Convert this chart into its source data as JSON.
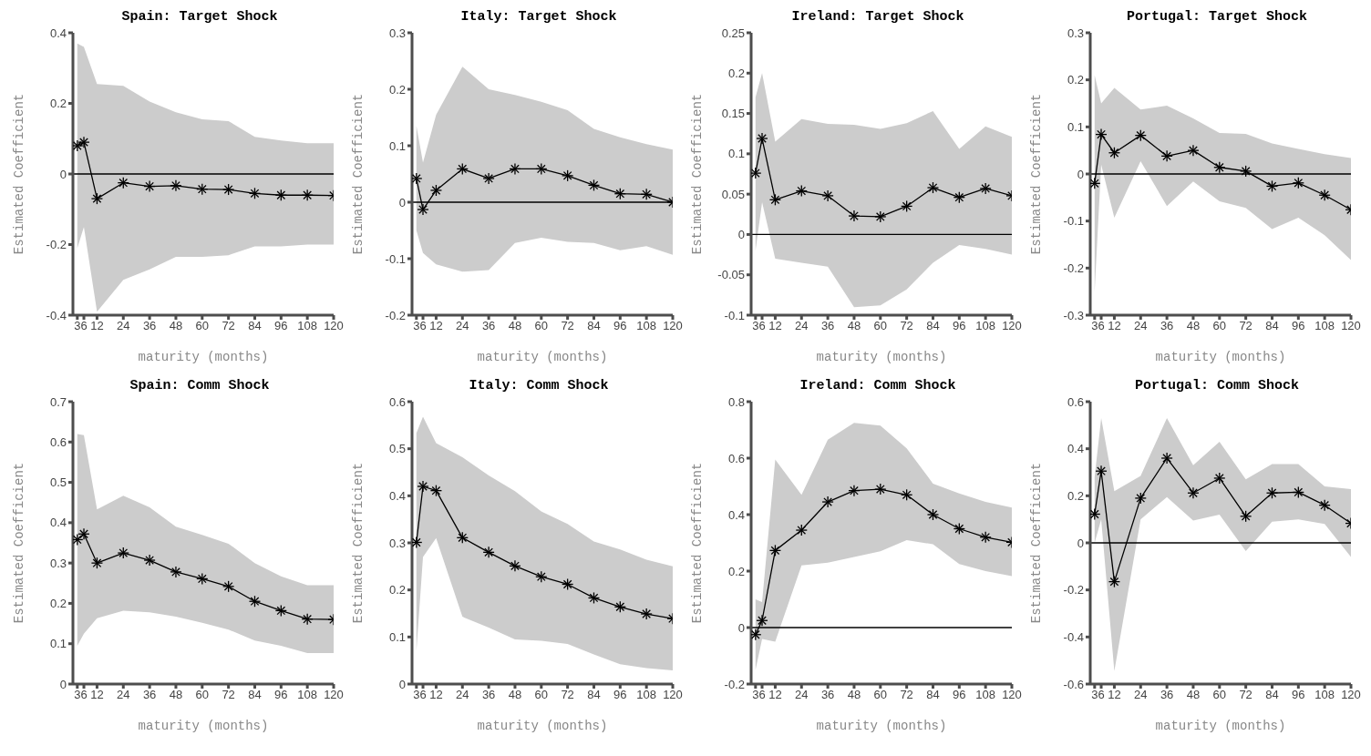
{
  "chart_data": [
    {
      "type": "line",
      "title": "Spain: Target Shock",
      "xlabel": "maturity (months)",
      "ylabel": "Estimated Coefficient",
      "x": [
        3,
        6,
        12,
        24,
        36,
        48,
        60,
        72,
        84,
        96,
        108,
        120
      ],
      "xlim": [
        1,
        120
      ],
      "xticks": [
        3,
        6,
        12,
        24,
        36,
        48,
        60,
        72,
        84,
        96,
        108,
        120
      ],
      "ylim": [
        -0.4,
        0.4
      ],
      "yticks": [
        -0.4,
        -0.2,
        0,
        0.2,
        0.4
      ],
      "marker": "cross",
      "grid": false,
      "ref_lines": [
        {
          "axis": "y",
          "value": 0,
          "color": "#000000"
        }
      ],
      "series": [
        {
          "color": "#000000",
          "values": [
            0.08,
            0.09,
            -0.07,
            -0.025,
            -0.035,
            -0.033,
            -0.043,
            -0.044,
            -0.055,
            -0.06,
            -0.06,
            -0.061
          ],
          "upper": [
            0.37,
            0.36,
            0.255,
            0.25,
            0.205,
            0.175,
            0.155,
            0.15,
            0.105,
            0.095,
            0.087,
            0.087
          ],
          "lower": [
            -0.21,
            -0.15,
            -0.39,
            -0.3,
            -0.27,
            -0.235,
            -0.235,
            -0.23,
            -0.205,
            -0.205,
            -0.2,
            -0.2
          ]
        }
      ]
    },
    {
      "type": "line",
      "title": "Italy: Target Shock",
      "xlabel": "maturity (months)",
      "ylabel": "Estimated Coefficient",
      "x": [
        3,
        6,
        12,
        24,
        36,
        48,
        60,
        72,
        84,
        96,
        108,
        120
      ],
      "xlim": [
        1,
        120
      ],
      "xticks": [
        3,
        6,
        12,
        24,
        36,
        48,
        60,
        72,
        84,
        96,
        108,
        120
      ],
      "ylim": [
        -0.2,
        0.3
      ],
      "yticks": [
        -0.2,
        -0.1,
        0,
        0.1,
        0.2,
        0.3
      ],
      "marker": "cross",
      "grid": false,
      "ref_lines": [
        {
          "axis": "y",
          "value": 0,
          "color": "#000000"
        }
      ],
      "series": [
        {
          "color": "#000000",
          "values": [
            0.042,
            -0.013,
            0.021,
            0.059,
            0.042,
            0.059,
            0.059,
            0.047,
            0.03,
            0.015,
            0.014,
            0
          ],
          "upper": [
            0.135,
            0.07,
            0.155,
            0.24,
            0.2,
            0.19,
            0.178,
            0.163,
            0.13,
            0.115,
            0.103,
            0.093
          ],
          "lower": [
            -0.05,
            -0.09,
            -0.11,
            -0.123,
            -0.12,
            -0.072,
            -0.063,
            -0.07,
            -0.072,
            -0.085,
            -0.078,
            -0.093
          ]
        }
      ]
    },
    {
      "type": "line",
      "title": "Ireland: Target Shock",
      "xlabel": "maturity (months)",
      "ylabel": "Estimated Coefficient",
      "x": [
        3,
        6,
        12,
        24,
        36,
        48,
        60,
        72,
        84,
        96,
        108,
        120
      ],
      "xlim": [
        1,
        120
      ],
      "xticks": [
        3,
        6,
        12,
        24,
        36,
        48,
        60,
        72,
        84,
        96,
        108,
        120
      ],
      "ylim": [
        -0.1,
        0.25
      ],
      "yticks": [
        -0.1,
        -0.05,
        0,
        0.05,
        0.1,
        0.15,
        0.2,
        0.25
      ],
      "marker": "cross",
      "grid": false,
      "ref_lines": [
        {
          "axis": "y",
          "value": 0,
          "color": "#000000"
        }
      ],
      "series": [
        {
          "color": "#000000",
          "values": [
            0.076,
            0.119,
            0.043,
            0.054,
            0.048,
            0.023,
            0.022,
            0.035,
            0.058,
            0.046,
            0.057,
            0.048
          ],
          "upper": [
            0.17,
            0.2,
            0.115,
            0.143,
            0.137,
            0.136,
            0.131,
            0.138,
            0.153,
            0.106,
            0.134,
            0.121
          ],
          "lower": [
            -0.02,
            0.04,
            -0.03,
            -0.035,
            -0.04,
            -0.09,
            -0.088,
            -0.068,
            -0.035,
            -0.013,
            -0.018,
            -0.025
          ]
        }
      ]
    },
    {
      "type": "line",
      "title": "Portugal: Target Shock",
      "xlabel": "maturity (months)",
      "ylabel": "Estimated Coefficient",
      "x": [
        3,
        6,
        12,
        24,
        36,
        48,
        60,
        72,
        84,
        96,
        108,
        120
      ],
      "xlim": [
        1,
        120
      ],
      "xticks": [
        3,
        6,
        12,
        24,
        36,
        48,
        60,
        72,
        84,
        96,
        108,
        120
      ],
      "ylim": [
        -0.3,
        0.3
      ],
      "yticks": [
        -0.3,
        -0.2,
        -0.1,
        0,
        0.1,
        0.2,
        0.3
      ],
      "marker": "cross",
      "grid": false,
      "ref_lines": [
        {
          "axis": "y",
          "value": 0,
          "color": "#000000"
        }
      ],
      "series": [
        {
          "color": "#000000",
          "values": [
            -0.02,
            0.084,
            0.045,
            0.082,
            0.038,
            0.05,
            0.014,
            0.006,
            -0.026,
            -0.019,
            -0.045,
            -0.076
          ],
          "upper": [
            0.21,
            0.15,
            0.183,
            0.137,
            0.145,
            0.118,
            0.087,
            0.085,
            0.065,
            0.053,
            0.042,
            0.034
          ],
          "lower": [
            -0.25,
            0.02,
            -0.093,
            0.027,
            -0.068,
            -0.016,
            -0.058,
            -0.072,
            -0.117,
            -0.093,
            -0.13,
            -0.183
          ]
        }
      ]
    },
    {
      "type": "line",
      "title": "Spain: Comm Shock",
      "xlabel": "maturity (months)",
      "ylabel": "Estimated Coefficient",
      "x": [
        3,
        6,
        12,
        24,
        36,
        48,
        60,
        72,
        84,
        96,
        108,
        120
      ],
      "xlim": [
        1,
        120
      ],
      "xticks": [
        3,
        6,
        12,
        24,
        36,
        48,
        60,
        72,
        84,
        96,
        108,
        120
      ],
      "ylim": [
        0,
        0.7
      ],
      "yticks": [
        0,
        0.1,
        0.2,
        0.3,
        0.4,
        0.5,
        0.6,
        0.7
      ],
      "marker": "cross",
      "grid": false,
      "series": [
        {
          "color": "#000000",
          "values": [
            0.358,
            0.372,
            0.3,
            0.325,
            0.307,
            0.278,
            0.261,
            0.242,
            0.205,
            0.182,
            0.161,
            0.16
          ],
          "upper": [
            0.62,
            0.617,
            0.433,
            0.467,
            0.438,
            0.39,
            0.37,
            0.348,
            0.3,
            0.267,
            0.245,
            0.245
          ],
          "lower": [
            0.095,
            0.125,
            0.163,
            0.182,
            0.178,
            0.167,
            0.152,
            0.135,
            0.108,
            0.095,
            0.077,
            0.077
          ]
        }
      ]
    },
    {
      "type": "line",
      "title": "Italy: Comm Shock",
      "xlabel": "maturity (months)",
      "ylabel": "Estimated Coefficient",
      "x": [
        3,
        6,
        12,
        24,
        36,
        48,
        60,
        72,
        84,
        96,
        108,
        120
      ],
      "xlim": [
        1,
        120
      ],
      "xticks": [
        3,
        6,
        12,
        24,
        36,
        48,
        60,
        72,
        84,
        96,
        108,
        120
      ],
      "ylim": [
        0,
        0.6
      ],
      "yticks": [
        0,
        0.1,
        0.2,
        0.3,
        0.4,
        0.5,
        0.6
      ],
      "marker": "cross",
      "grid": false,
      "series": [
        {
          "color": "#000000",
          "values": [
            0.301,
            0.42,
            0.411,
            0.311,
            0.28,
            0.251,
            0.228,
            0.212,
            0.183,
            0.164,
            0.149,
            0.139
          ],
          "upper": [
            0.533,
            0.568,
            0.512,
            0.482,
            0.443,
            0.41,
            0.367,
            0.34,
            0.303,
            0.286,
            0.264,
            0.25
          ],
          "lower": [
            0.07,
            0.27,
            0.31,
            0.143,
            0.12,
            0.095,
            0.092,
            0.085,
            0.063,
            0.042,
            0.034,
            0.029
          ]
        }
      ]
    },
    {
      "type": "line",
      "title": "Ireland: Comm Shock",
      "xlabel": "maturity (months)",
      "ylabel": "Estimated Coefficient",
      "x": [
        3,
        6,
        12,
        24,
        36,
        48,
        60,
        72,
        84,
        96,
        108,
        120
      ],
      "xlim": [
        1,
        120
      ],
      "xticks": [
        3,
        6,
        12,
        24,
        36,
        48,
        60,
        72,
        84,
        96,
        108,
        120
      ],
      "ylim": [
        -0.2,
        0.8
      ],
      "yticks": [
        -0.2,
        0,
        0.2,
        0.4,
        0.6,
        0.8
      ],
      "marker": "cross",
      "grid": false,
      "ref_lines": [
        {
          "axis": "y",
          "value": 0,
          "color": "#000000"
        }
      ],
      "series": [
        {
          "color": "#000000",
          "values": [
            -0.025,
            0.025,
            0.273,
            0.345,
            0.445,
            0.485,
            0.49,
            0.47,
            0.4,
            0.35,
            0.32,
            0.302
          ],
          "upper": [
            0.1,
            0.09,
            0.595,
            0.47,
            0.665,
            0.725,
            0.715,
            0.635,
            0.51,
            0.475,
            0.445,
            0.425
          ],
          "lower": [
            -0.15,
            -0.04,
            -0.05,
            0.22,
            0.23,
            0.25,
            0.27,
            0.31,
            0.295,
            0.225,
            0.2,
            0.182
          ]
        }
      ]
    },
    {
      "type": "line",
      "title": "Portugal: Comm Shock",
      "xlabel": "maturity (months)",
      "ylabel": "Estimated Coefficient",
      "x": [
        3,
        6,
        12,
        24,
        36,
        48,
        60,
        72,
        84,
        96,
        108,
        120
      ],
      "xlim": [
        1,
        120
      ],
      "xticks": [
        3,
        6,
        12,
        24,
        36,
        48,
        60,
        72,
        84,
        96,
        108,
        120
      ],
      "ylim": [
        -0.6,
        0.6
      ],
      "yticks": [
        -0.6,
        -0.4,
        -0.2,
        0,
        0.2,
        0.4,
        0.6
      ],
      "marker": "cross",
      "grid": false,
      "ref_lines": [
        {
          "axis": "y",
          "value": 0,
          "color": "#000000"
        }
      ],
      "series": [
        {
          "color": "#000000",
          "values": [
            0.122,
            0.305,
            -0.165,
            0.19,
            0.36,
            0.212,
            0.275,
            0.113,
            0.212,
            0.215,
            0.16,
            0.083
          ],
          "upper": [
            0.28,
            0.53,
            0.22,
            0.285,
            0.53,
            0.33,
            0.43,
            0.27,
            0.335,
            0.335,
            0.24,
            0.228
          ],
          "lower": [
            0,
            0.1,
            -0.545,
            0.1,
            0.195,
            0.095,
            0.12,
            -0.035,
            0.09,
            0.1,
            0.08,
            -0.06
          ]
        }
      ]
    }
  ]
}
